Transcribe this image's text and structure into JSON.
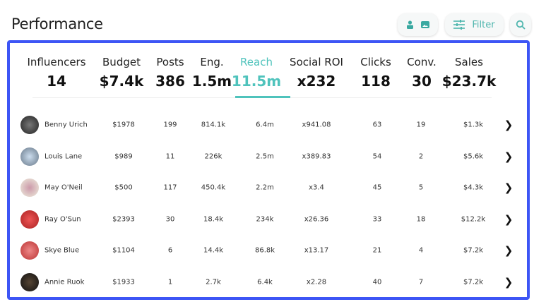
{
  "header": {
    "title": "Performance",
    "filter_label": "Filter"
  },
  "stats": [
    {
      "label": "Influencers",
      "value": "14"
    },
    {
      "label": "Budget",
      "value": "$7.4k"
    },
    {
      "label": "Posts",
      "value": "386"
    },
    {
      "label": "Eng.",
      "value": "1.5m"
    },
    {
      "label": "Reach",
      "value": "11.5m",
      "active": true
    },
    {
      "label": "Social ROI",
      "value": "x232"
    },
    {
      "label": "Clicks",
      "value": "118"
    },
    {
      "label": "Conv.",
      "value": "30"
    },
    {
      "label": "Sales",
      "value": "$23.7k"
    }
  ],
  "rows": [
    {
      "name": "Benny Urich",
      "budget": "$1978",
      "posts": "199",
      "eng": "814.1k",
      "reach": "6.4m",
      "roi": "x941.08",
      "clicks": "63",
      "conv": "19",
      "sales": "$1.3k"
    },
    {
      "name": "Louis Lane",
      "budget": "$989",
      "posts": "11",
      "eng": "226k",
      "reach": "2.5m",
      "roi": "x389.83",
      "clicks": "54",
      "conv": "2",
      "sales": "$5.6k"
    },
    {
      "name": "May O'Neil",
      "budget": "$500",
      "posts": "117",
      "eng": "450.4k",
      "reach": "2.2m",
      "roi": "x3.4",
      "clicks": "45",
      "conv": "5",
      "sales": "$4.3k"
    },
    {
      "name": "Ray O'Sun",
      "budget": "$2393",
      "posts": "30",
      "eng": "18.4k",
      "reach": "234k",
      "roi": "x26.36",
      "clicks": "33",
      "conv": "18",
      "sales": "$12.2k"
    },
    {
      "name": "Skye Blue",
      "budget": "$1104",
      "posts": "6",
      "eng": "14.4k",
      "reach": "86.8k",
      "roi": "x13.17",
      "clicks": "21",
      "conv": "4",
      "sales": "$7.2k"
    },
    {
      "name": "Annie Ruok",
      "budget": "$1933",
      "posts": "1",
      "eng": "2.7k",
      "reach": "6.4k",
      "roi": "x2.28",
      "clicks": "40",
      "conv": "7",
      "sales": "$7.2k"
    }
  ],
  "colors": {
    "accent": "#4fc3bc",
    "frame": "#3d55f5"
  }
}
